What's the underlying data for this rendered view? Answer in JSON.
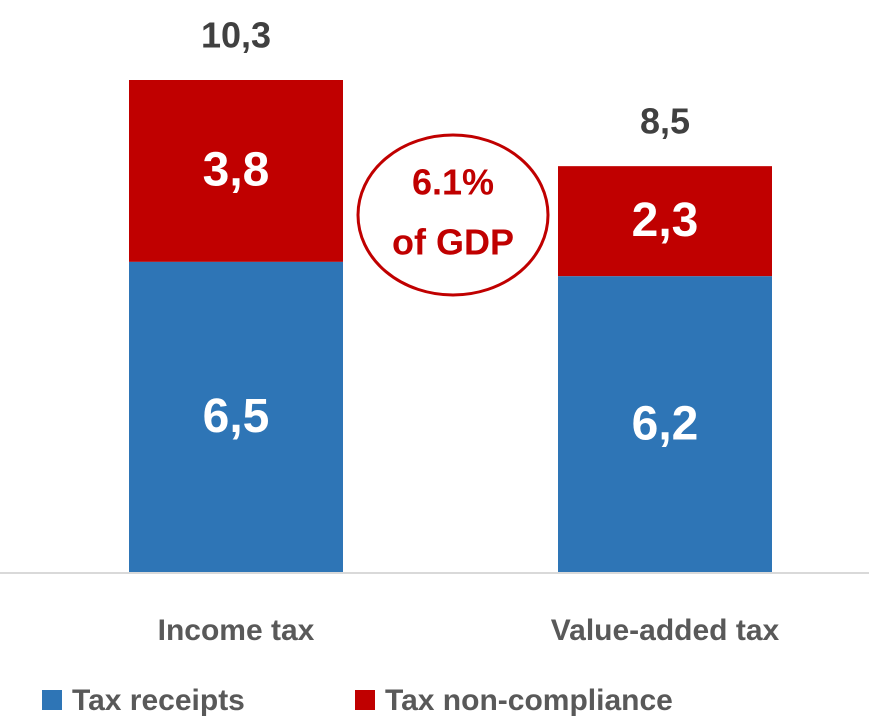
{
  "chart_data": {
    "type": "stacked_bar",
    "categories": [
      "Income tax",
      "Value-added tax"
    ],
    "series": [
      {
        "name": "Tax receipts",
        "color": "#2e75b6",
        "values": [
          6.5,
          6.2
        ],
        "value_labels": [
          "6,5",
          "6,2"
        ]
      },
      {
        "name": "Tax non-compliance",
        "color": "#c00000",
        "values": [
          3.8,
          2.3
        ],
        "value_labels": [
          "3,8",
          "2,3"
        ]
      }
    ],
    "totals": [
      10.3,
      8.5
    ],
    "total_labels": [
      "10,3",
      "8,5"
    ],
    "annotation": [
      "6.1%",
      "of GDP"
    ],
    "legend": "bottom"
  }
}
